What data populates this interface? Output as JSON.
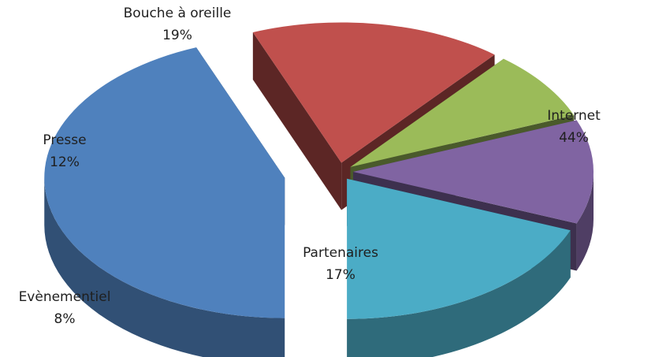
{
  "chart_data": {
    "type": "pie",
    "style": "3d-exploded",
    "title": "",
    "slices": [
      {
        "label": "Internet",
        "value": 44,
        "display": "44%",
        "color": "#4f81bd",
        "label_placement": "inside"
      },
      {
        "label": "Partenaires",
        "value": 17,
        "display": "17%",
        "color": "#c0504d",
        "label_placement": "inside"
      },
      {
        "label": "Evènementiel",
        "value": 8,
        "display": "8%",
        "color": "#9bbb59",
        "label_placement": "outside"
      },
      {
        "label": "Presse",
        "value": 12,
        "display": "12%",
        "color": "#8064a2",
        "label_placement": "outside"
      },
      {
        "label": "Bouche à oreille",
        "value": 19,
        "display": "19%",
        "color": "#4bacc6",
        "label_placement": "outside"
      }
    ]
  }
}
